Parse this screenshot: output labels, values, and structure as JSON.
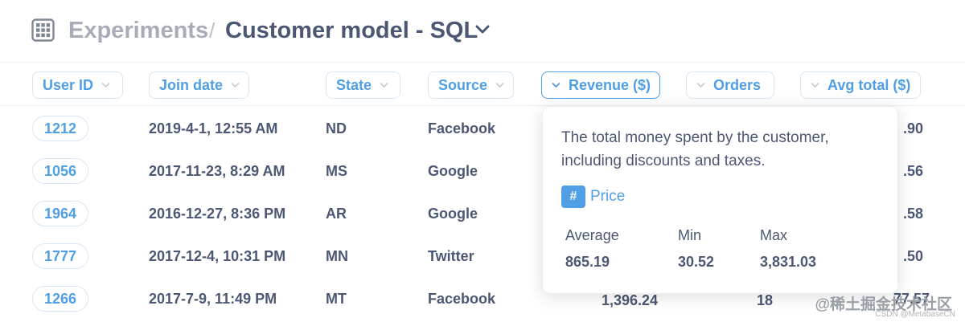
{
  "header": {
    "parent_crumb": "Experiments",
    "separator": "/",
    "title": "Customer model - SQL"
  },
  "columns": [
    {
      "label": "User ID"
    },
    {
      "label": "Join date"
    },
    {
      "label": "State"
    },
    {
      "label": "Source"
    },
    {
      "label": "Revenue ($)"
    },
    {
      "label": "Orders"
    },
    {
      "label": "Avg total ($)"
    }
  ],
  "rows": [
    {
      "user_id": "1212",
      "join_date": "2019-4-1, 12:55 AM",
      "state": "ND",
      "source": "Facebook",
      "revenue": "",
      "orders": "",
      "avg_total": ".90"
    },
    {
      "user_id": "1056",
      "join_date": "2017-11-23, 8:29 AM",
      "state": "MS",
      "source": "Google",
      "revenue": "",
      "orders": "",
      "avg_total": ".56"
    },
    {
      "user_id": "1964",
      "join_date": "2016-12-27, 8:36 PM",
      "state": "AR",
      "source": "Google",
      "revenue": "",
      "orders": "",
      "avg_total": ".58"
    },
    {
      "user_id": "1777",
      "join_date": "2017-12-4, 10:31 PM",
      "state": "MN",
      "source": "Twitter",
      "revenue": "",
      "orders": "",
      "avg_total": ".50"
    },
    {
      "user_id": "1266",
      "join_date": "2017-7-9, 11:49 PM",
      "state": "MT",
      "source": "Facebook",
      "revenue": "1,396.24",
      "orders": "18",
      "avg_total": "77.57"
    }
  ],
  "popover": {
    "description": "The total money spent by the customer, including discounts and taxes.",
    "type_symbol": "#",
    "type_label": "Price",
    "stats": {
      "average_label": "Average",
      "average_value": "865.19",
      "min_label": "Min",
      "min_value": "30.52",
      "max_label": "Max",
      "max_value": "3,831.03"
    }
  },
  "watermark": {
    "cn": "@稀土掘金技术社区",
    "csdn": "CSDN @MetabaseCN"
  },
  "icons": {
    "grid": "grid-icon",
    "title_caret": "chevron-down-icon",
    "column_chevron": "chevron-down-icon"
  },
  "colors": {
    "brand": "#509ee3",
    "text": "#4c5773",
    "muted": "#a6adb8"
  }
}
